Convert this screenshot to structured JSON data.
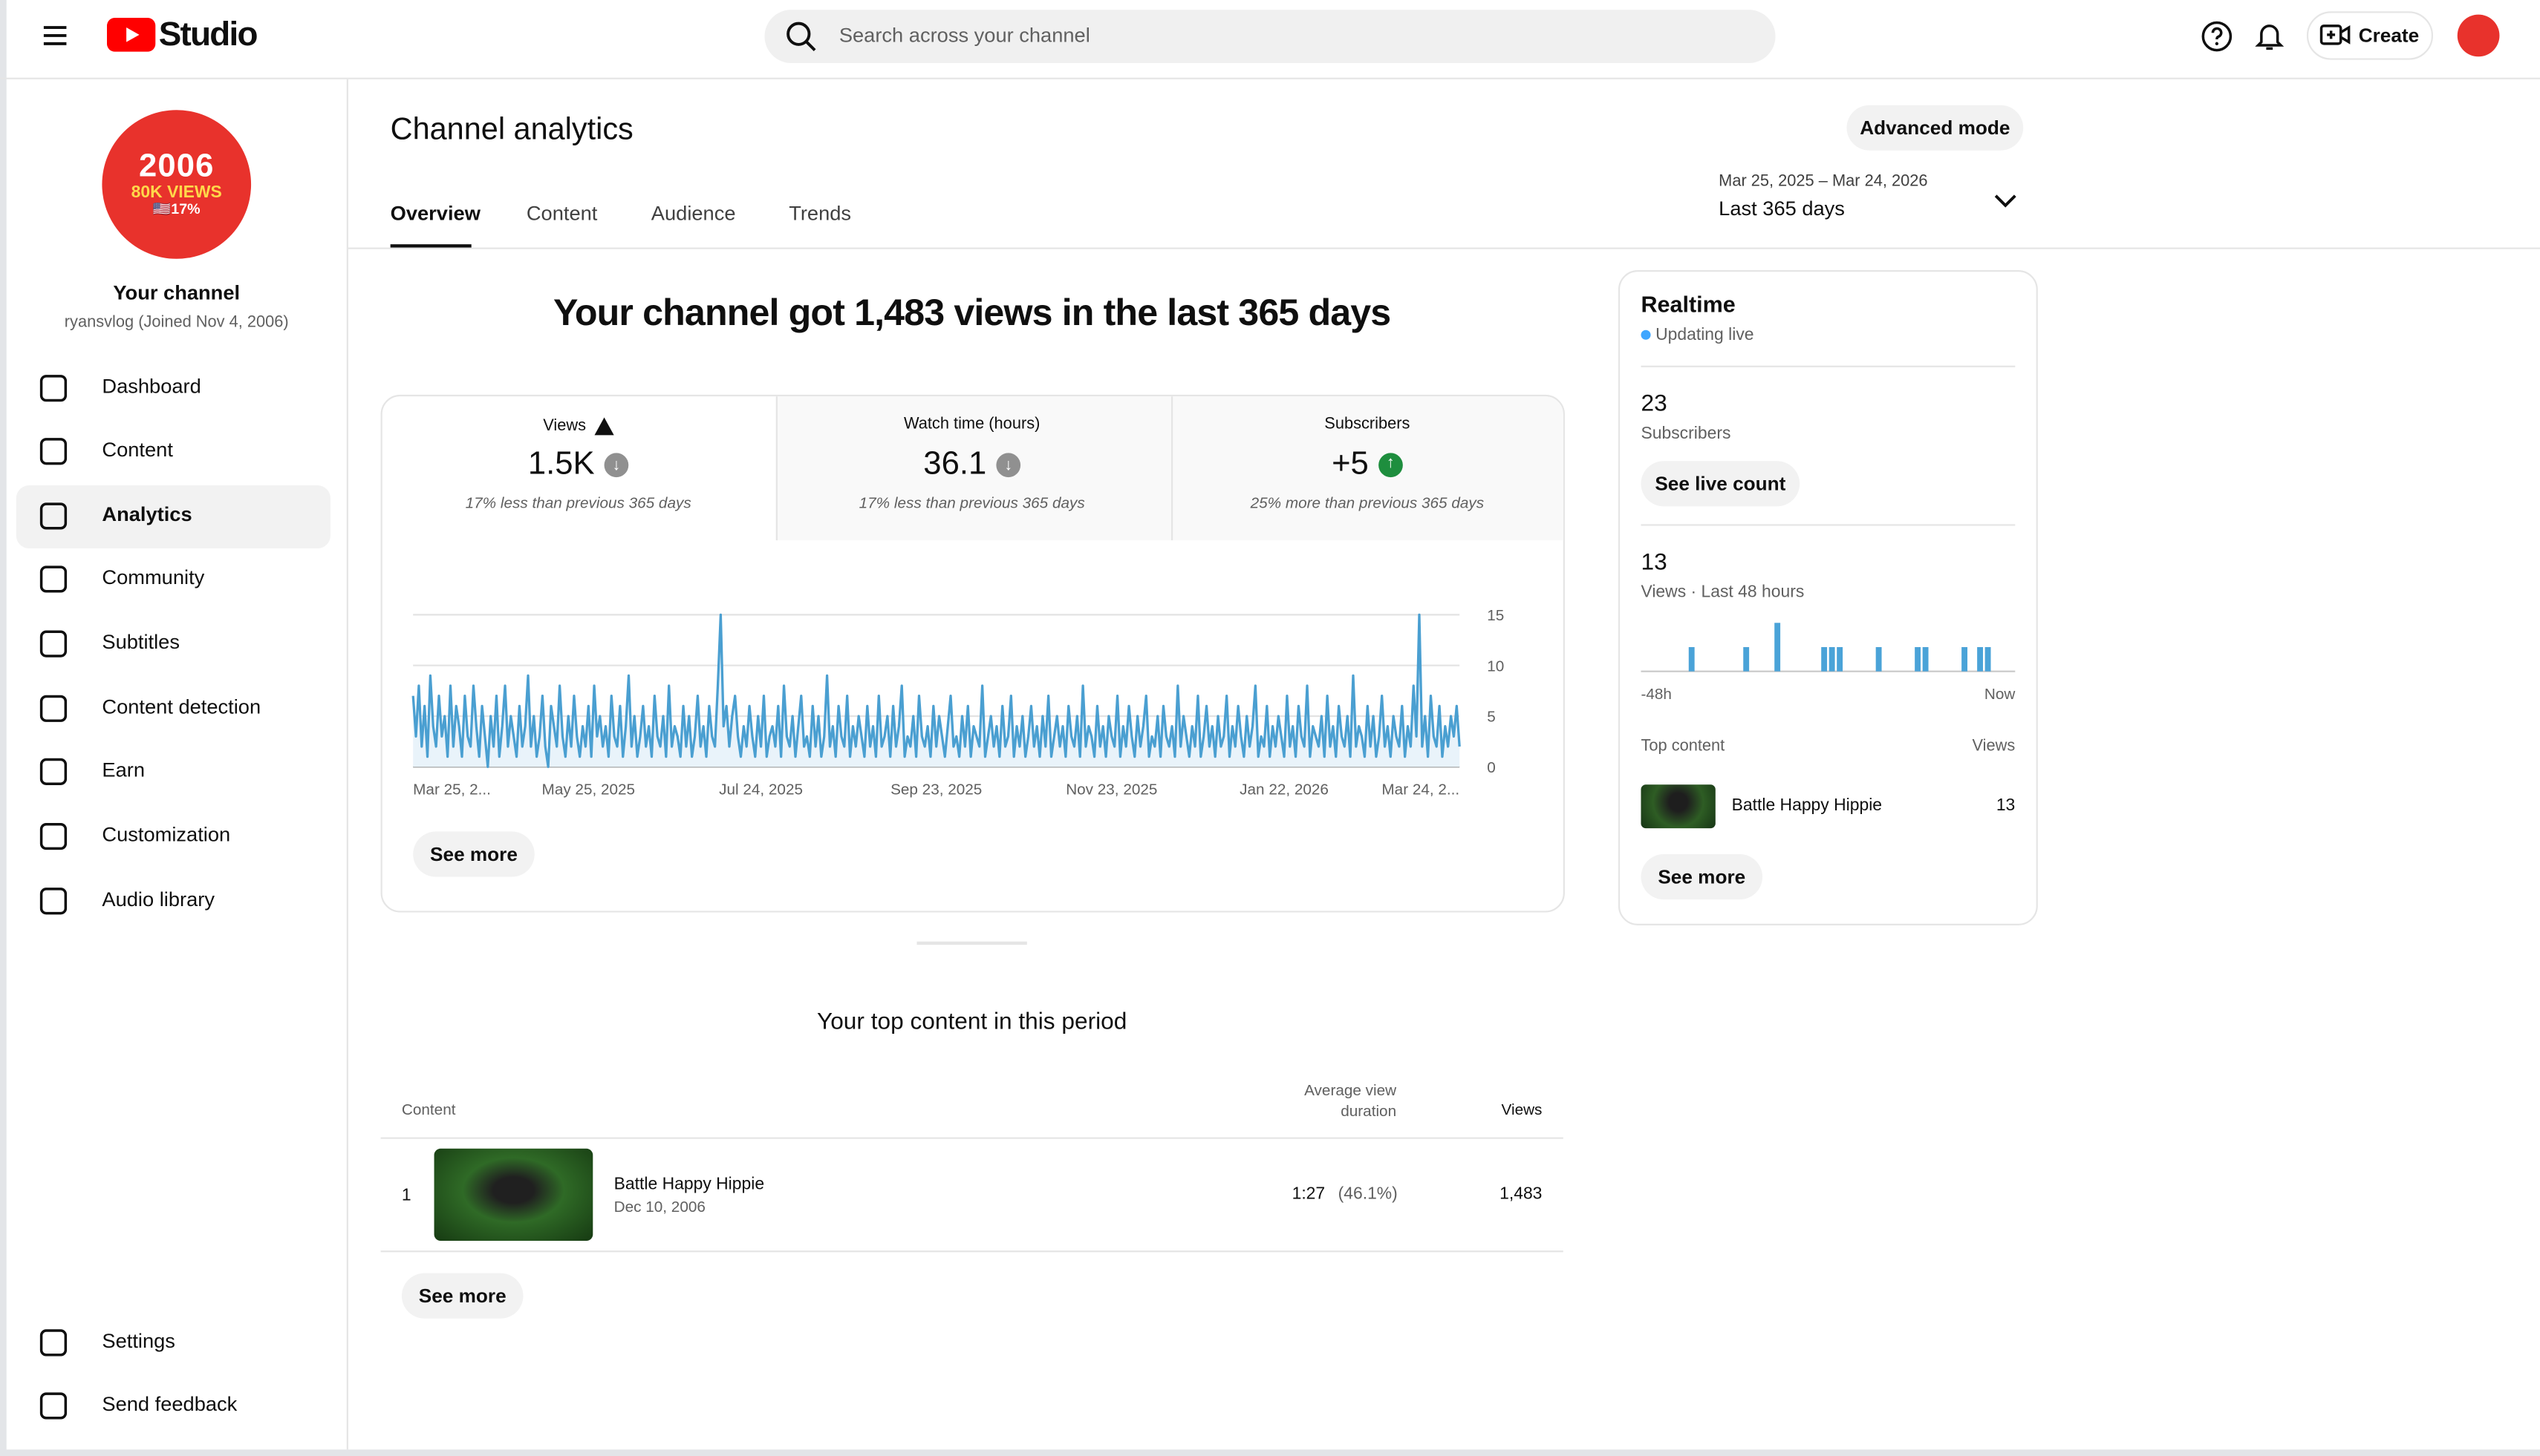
{
  "header": {
    "logo_text": "Studio",
    "search_placeholder": "Search across your channel",
    "create": "Create"
  },
  "sidebar": {
    "avatar_text": [
      "2006",
      "80K VIEWS",
      "🇺🇸17%"
    ],
    "channel_title": "Your channel",
    "channel_sub": "ryansvlog (Joined Nov 4, 2006)",
    "nav": [
      "Dashboard",
      "Content",
      "Analytics",
      "Community",
      "Subtitles",
      "Content detection",
      "Earn",
      "Customization",
      "Audio library"
    ],
    "bottom_nav": [
      "Settings",
      "Send feedback"
    ]
  },
  "page": {
    "title": "Channel analytics",
    "advanced_mode": "Advanced mode",
    "tabs": [
      "Overview",
      "Content",
      "Audience",
      "Trends"
    ],
    "date_range": "Mar 25, 2025 – Mar 24, 2026",
    "date_label": "Last 365 days"
  },
  "overview": {
    "headline": "Your channel got 1,483 views in the last 365 days",
    "metrics": [
      {
        "label": "Views",
        "value": "1.5K",
        "delta": "17% less than previous 365 days",
        "trend": "down"
      },
      {
        "label": "Watch time (hours)",
        "value": "36.1",
        "delta": "17% less than previous 365 days",
        "trend": "down"
      },
      {
        "label": "Subscribers",
        "value": "+5",
        "delta": "25% more than previous 365 days",
        "trend": "up"
      }
    ],
    "see_more": "See more"
  },
  "chart_data": [
    {
      "type": "line",
      "color": "#4a9fd1",
      "area_color": "#e9f3fa",
      "grid": true,
      "xlim": [
        0,
        364
      ],
      "ylim": [
        0,
        15
      ],
      "yticks": [
        0,
        5,
        10,
        15
      ],
      "xticks": [
        {
          "value": 0,
          "label": "Mar 25, 2..."
        },
        {
          "value": 61,
          "label": "May 25, 2025"
        },
        {
          "value": 121,
          "label": "Jul 24, 2025"
        },
        {
          "value": 182,
          "label": "Sep 23, 2025"
        },
        {
          "value": 243,
          "label": "Nov 23, 2025"
        },
        {
          "value": 303,
          "label": "Jan 22, 2026"
        },
        {
          "value": 364,
          "label": "Mar 24, 2..."
        }
      ],
      "values": [
        7,
        3,
        8,
        2,
        6,
        1,
        9,
        4,
        2,
        7,
        3,
        5,
        1,
        8,
        2,
        6,
        4,
        1,
        7,
        3,
        2,
        8,
        4,
        1,
        6,
        3,
        0,
        5,
        2,
        7,
        1,
        4,
        8,
        2,
        5,
        3,
        1,
        6,
        2,
        4,
        9,
        2,
        5,
        1,
        3,
        7,
        2,
        0,
        6,
        4,
        2,
        8,
        3,
        1,
        5,
        2,
        7,
        3,
        1,
        4,
        2,
        6,
        1,
        8,
        3,
        5,
        2,
        4,
        1,
        7,
        3,
        2,
        6,
        1,
        4,
        9,
        2,
        5,
        1,
        3,
        6,
        2,
        4,
        1,
        7,
        3,
        2,
        5,
        1,
        8,
        2,
        4,
        3,
        1,
        6,
        2,
        5,
        1,
        3,
        7,
        2,
        4,
        1,
        6,
        3,
        2,
        8,
        15,
        4,
        6,
        2,
        5,
        7,
        3,
        1,
        4,
        2,
        6,
        3,
        1,
        5,
        2,
        7,
        1,
        3,
        4,
        2,
        6,
        1,
        8,
        3,
        2,
        5,
        1,
        4,
        7,
        2,
        3,
        1,
        6,
        2,
        5,
        1,
        3,
        9,
        2,
        4,
        1,
        6,
        3,
        2,
        7,
        1,
        4,
        2,
        5,
        3,
        1,
        6,
        2,
        4,
        1,
        7,
        2,
        3,
        5,
        1,
        6,
        2,
        4,
        8,
        1,
        3,
        2,
        5,
        1,
        7,
        3,
        2,
        4,
        1,
        6,
        2,
        5,
        3,
        1,
        4,
        7,
        2,
        3,
        1,
        5,
        2,
        6,
        1,
        4,
        3,
        2,
        8,
        1,
        3,
        5,
        2,
        4,
        1,
        6,
        2,
        3,
        7,
        1,
        4,
        2,
        5,
        1,
        3,
        6,
        2,
        4,
        1,
        5,
        2,
        7,
        1,
        3,
        5,
        2,
        4,
        1,
        6,
        3,
        2,
        5,
        1,
        8,
        2,
        4,
        3,
        1,
        6,
        2,
        4,
        1,
        5,
        3,
        2,
        7,
        1,
        4,
        2,
        6,
        3,
        1,
        5,
        2,
        4,
        7,
        1,
        3,
        2,
        5,
        1,
        6,
        3,
        2,
        4,
        1,
        8,
        2,
        5,
        3,
        1,
        4,
        2,
        7,
        1,
        3,
        6,
        2,
        4,
        1,
        5,
        2,
        3,
        7,
        1,
        4,
        2,
        6,
        3,
        1,
        5,
        2,
        4,
        8,
        1,
        3,
        2,
        6,
        1,
        4,
        2,
        5,
        3,
        1,
        7,
        2,
        4,
        1,
        6,
        3,
        2,
        8,
        1,
        4,
        3,
        2,
        5,
        1,
        7,
        2,
        4,
        1,
        6,
        3,
        2,
        5,
        1,
        9,
        2,
        4,
        3,
        1,
        6,
        2,
        5,
        1,
        3,
        7,
        2,
        4,
        1,
        5,
        3,
        2,
        6,
        1,
        4,
        2,
        8,
        3,
        15,
        2,
        5,
        1,
        7,
        3,
        2,
        6,
        1,
        4,
        2,
        5,
        3,
        6,
        2
      ]
    },
    {
      "type": "bar",
      "color": "#4aa3d8",
      "xlim": [
        0,
        48
      ],
      "xticks": [
        {
          "value": 0,
          "label": "-48h"
        },
        {
          "value": 48,
          "label": "Now"
        }
      ],
      "values": [
        0,
        0,
        0,
        0,
        0,
        0,
        1,
        0,
        0,
        0,
        0,
        0,
        0,
        1,
        0,
        0,
        0,
        2,
        0,
        0,
        0,
        0,
        0,
        1,
        1,
        1,
        0,
        0,
        0,
        0,
        1,
        0,
        0,
        0,
        0,
        1,
        1,
        0,
        0,
        0,
        0,
        1,
        0,
        1,
        1,
        0,
        0,
        0
      ]
    }
  ],
  "realtime": {
    "title": "Realtime",
    "status": "Updating live",
    "subscribers": "23",
    "subscribers_label": "Subscribers",
    "see_live_count": "See live count",
    "views": "13",
    "views_label": "Views · Last 48 hours",
    "top_content_label": "Top content",
    "views_col": "Views",
    "top_item": {
      "title": "Battle Happy Hippie",
      "views": "13"
    },
    "see_more": "See more"
  },
  "top_content": {
    "title": "Your top content in this period",
    "columns": [
      "Content",
      "Average view duration",
      "Views"
    ],
    "rows": [
      {
        "rank": "1",
        "title": "Battle Happy Hippie",
        "date": "Dec 10, 2006",
        "avg_duration": "1:27",
        "avg_pct": "(46.1%)",
        "views": "1,483"
      }
    ],
    "see_more": "See more"
  }
}
